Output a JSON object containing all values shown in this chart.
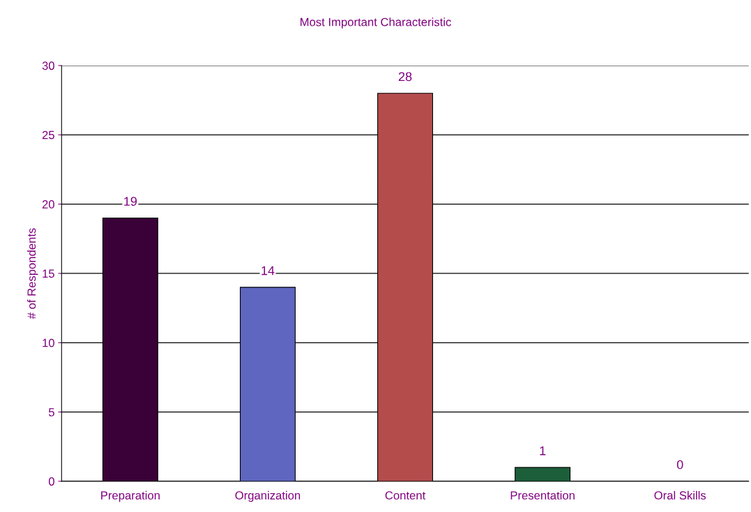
{
  "chart_data": {
    "type": "bar",
    "title": "Most Important Characteristic",
    "ylabel": "# of Respondents",
    "categories": [
      "Preparation",
      "Organization",
      "Content",
      "Presentation",
      "Oral Skills"
    ],
    "values": [
      19,
      14,
      28,
      1,
      0
    ],
    "colors": [
      "#3a0038",
      "#5f66c0",
      "#b44c4c",
      "#1c5e3a",
      null
    ],
    "ylim": [
      0,
      30
    ],
    "yticks": [
      0,
      5,
      10,
      15,
      20,
      25,
      30
    ],
    "grid": "y",
    "data_labels": true
  }
}
